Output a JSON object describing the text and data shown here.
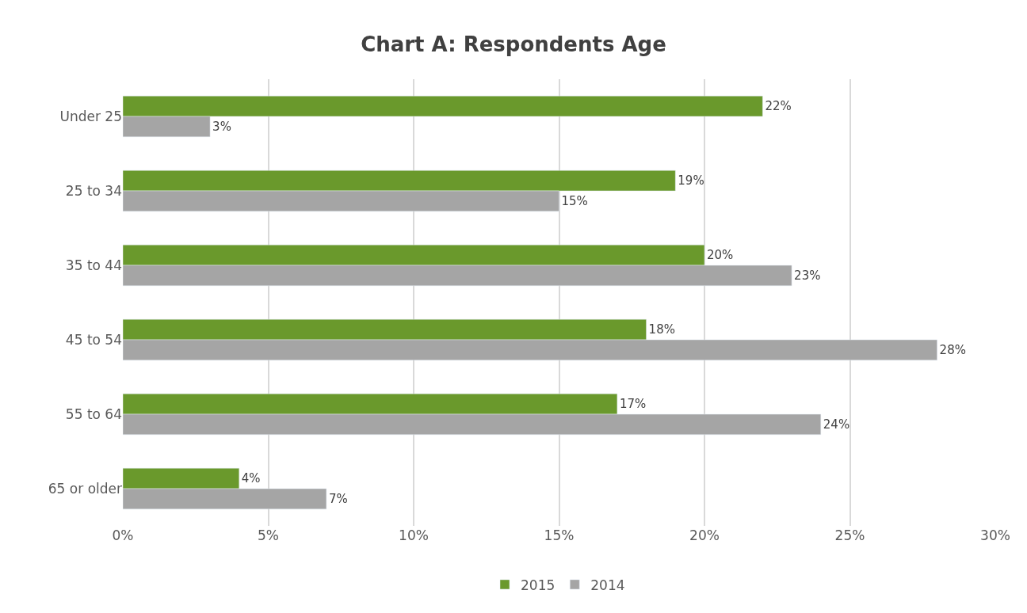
{
  "chart_data": {
    "type": "bar",
    "orientation": "horizontal",
    "title": "Chart A: Respondents Age",
    "categories": [
      "Under 25",
      "25 to 34",
      "35 to 44",
      "45 to 54",
      "55 to 64",
      "65 or older"
    ],
    "series": [
      {
        "name": "2015",
        "color": "#6a992c",
        "values": [
          22,
          19,
          20,
          18,
          17,
          4
        ],
        "value_labels": [
          "22%",
          "19%",
          "20%",
          "18%",
          "17%",
          "4%"
        ]
      },
      {
        "name": "2014",
        "color": "#a5a5a5",
        "values": [
          3,
          15,
          23,
          28,
          24,
          7
        ],
        "value_labels": [
          "3%",
          "15%",
          "23%",
          "28%",
          "24%",
          "7%"
        ]
      }
    ],
    "xlim": [
      0,
      30
    ],
    "xticks": [
      {
        "value": 0,
        "label": "0%"
      },
      {
        "value": 5,
        "label": "5%"
      },
      {
        "value": 10,
        "label": "10%"
      },
      {
        "value": 15,
        "label": "15%"
      },
      {
        "value": 20,
        "label": "20%"
      },
      {
        "value": 25,
        "label": "25%"
      },
      {
        "value": 30,
        "label": "30%"
      }
    ],
    "grid": "x",
    "legend": "bottom"
  }
}
